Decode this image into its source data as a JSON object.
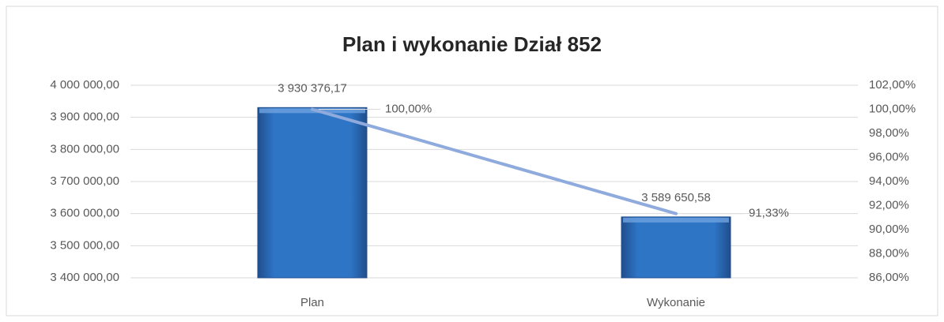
{
  "chart_data": {
    "type": "bar",
    "title": "Plan i wykonanie Dział 852",
    "categories": [
      "Plan",
      "Wykonanie"
    ],
    "series": [
      {
        "type": "bar",
        "color": "#2e75c6",
        "values": [
          3930376.17,
          3589650.58
        ],
        "value_labels": [
          "3 930 376,17",
          "3 589 650,58"
        ]
      },
      {
        "type": "line",
        "axis": "y2",
        "color": "#8faadc",
        "values": [
          100,
          91.33
        ],
        "value_labels": [
          "100,00%",
          "91,33%"
        ]
      }
    ],
    "ylim": [
      3400000,
      4000000
    ],
    "yticks": [
      {
        "value": 3400000,
        "label": "3 400 000,00"
      },
      {
        "value": 3500000,
        "label": "3 500 000,00"
      },
      {
        "value": 3600000,
        "label": "3 600 000,00"
      },
      {
        "value": 3700000,
        "label": "3 700 000,00"
      },
      {
        "value": 3800000,
        "label": "3 800 000,00"
      },
      {
        "value": 3900000,
        "label": "3 900 000,00"
      },
      {
        "value": 4000000,
        "label": "4 000 000,00"
      }
    ],
    "y2lim": [
      86,
      102
    ],
    "y2ticks": [
      {
        "value": 86,
        "label": "86,00%"
      },
      {
        "value": 88,
        "label": "88,00%"
      },
      {
        "value": 90,
        "label": "90,00%"
      },
      {
        "value": 92,
        "label": "92,00%"
      },
      {
        "value": 94,
        "label": "94,00%"
      },
      {
        "value": 96,
        "label": "96,00%"
      },
      {
        "value": 98,
        "label": "98,00%"
      },
      {
        "value": 100,
        "label": "100,00%"
      },
      {
        "value": 102,
        "label": "102,00%"
      }
    ],
    "grid": true
  }
}
